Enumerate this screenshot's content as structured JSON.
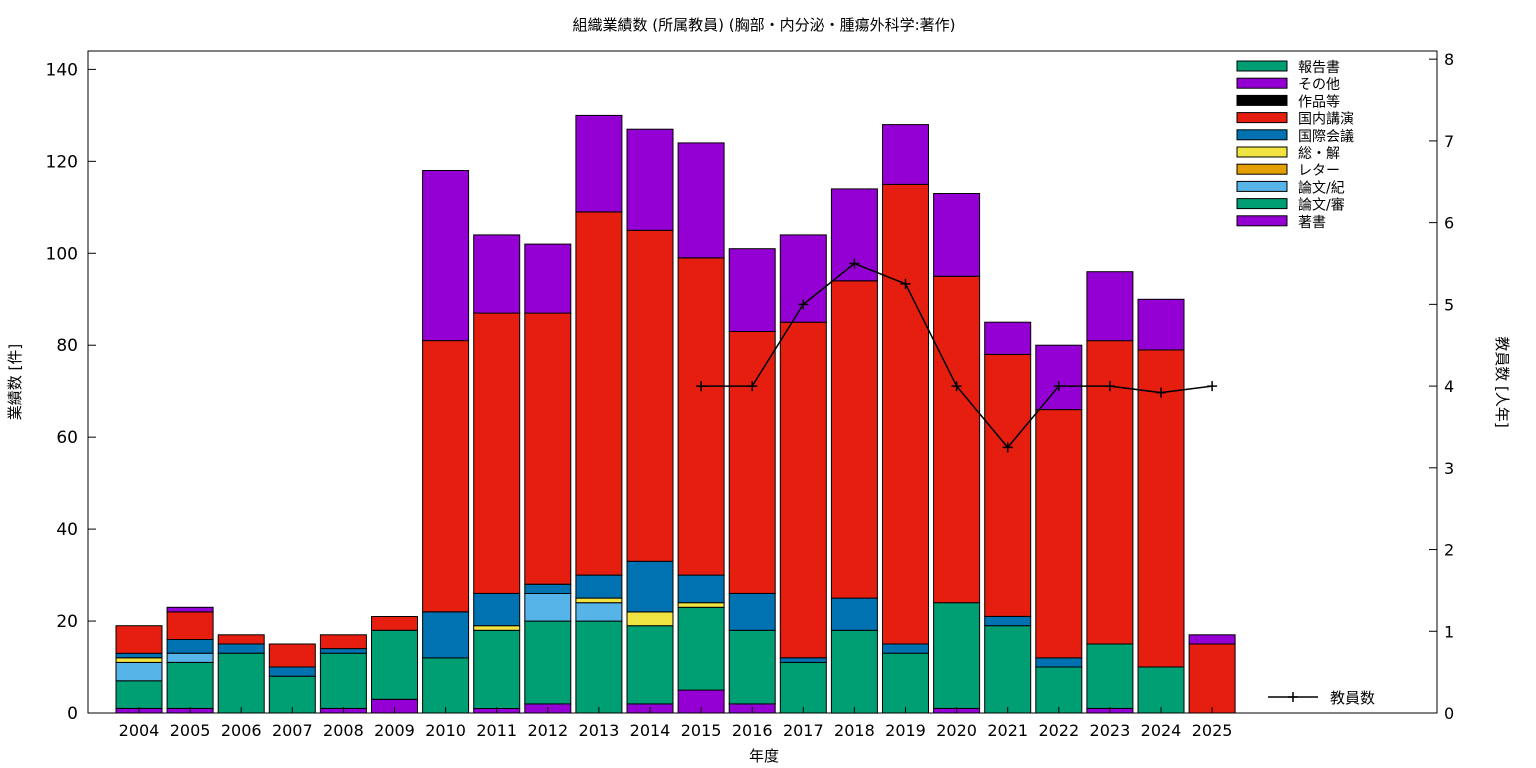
{
  "chart_data": {
    "type": "bar",
    "title": "組織業績数 (所属教員) (胸部・内分泌・腫瘍外科学:著作)",
    "xlabel": "年度",
    "ylabel": "業績数 [件]",
    "y2label": "教員数 [人年]",
    "ylim": [
      0,
      144
    ],
    "y2lim": [
      0,
      8.1
    ],
    "yticks": [
      0,
      20,
      40,
      60,
      80,
      100,
      120,
      140
    ],
    "y2ticks": [
      0,
      1,
      2,
      3,
      4,
      5,
      6,
      7,
      8
    ],
    "grid": false,
    "legend_position": "top-right",
    "categories": [
      "2004",
      "2005",
      "2006",
      "2007",
      "2008",
      "2009",
      "2010",
      "2011",
      "2012",
      "2013",
      "2014",
      "2015",
      "2016",
      "2017",
      "2018",
      "2019",
      "2020",
      "2021",
      "2022",
      "2023",
      "2024",
      "2025"
    ],
    "series": [
      {
        "name": "著書",
        "color": "#9400d3",
        "values": [
          1,
          1,
          0,
          0,
          1,
          3,
          0,
          1,
          2,
          0,
          2,
          5,
          2,
          0,
          0,
          0,
          1,
          0,
          0,
          1,
          0,
          0
        ]
      },
      {
        "name": "論文/審",
        "color": "#009e73",
        "values": [
          6,
          10,
          13,
          8,
          12,
          15,
          12,
          17,
          18,
          20,
          17,
          18,
          16,
          11,
          18,
          13,
          23,
          19,
          10,
          14,
          10,
          0
        ]
      },
      {
        "name": "論文/紀",
        "color": "#56b4e9",
        "values": [
          4,
          2,
          0,
          0,
          0,
          0,
          0,
          0,
          6,
          4,
          0,
          0,
          0,
          0,
          0,
          0,
          0,
          0,
          0,
          0,
          0,
          0
        ]
      },
      {
        "name": "レター",
        "color": "#e69f00",
        "values": [
          0,
          0,
          0,
          0,
          0,
          0,
          0,
          0,
          0,
          0,
          0,
          0,
          0,
          0,
          0,
          0,
          0,
          0,
          0,
          0,
          0,
          0
        ]
      },
      {
        "name": "総・解",
        "color": "#f0e442",
        "values": [
          1,
          0,
          0,
          0,
          0,
          0,
          0,
          1,
          0,
          1,
          3,
          1,
          0,
          0,
          0,
          0,
          0,
          0,
          0,
          0,
          0,
          0
        ]
      },
      {
        "name": "国際会議",
        "color": "#0072b2",
        "values": [
          1,
          3,
          2,
          2,
          1,
          0,
          10,
          7,
          2,
          5,
          11,
          6,
          8,
          1,
          7,
          2,
          0,
          2,
          2,
          0,
          0,
          0
        ]
      },
      {
        "name": "国内講演",
        "color": "#e51e10",
        "values": [
          6,
          6,
          2,
          5,
          3,
          3,
          59,
          61,
          59,
          79,
          72,
          69,
          57,
          73,
          69,
          100,
          71,
          57,
          54,
          66,
          69,
          15
        ]
      },
      {
        "name": "作品等",
        "color": "#000000",
        "values": [
          0,
          0,
          0,
          0,
          0,
          0,
          0,
          0,
          0,
          0,
          0,
          0,
          0,
          0,
          0,
          0,
          0,
          0,
          0,
          0,
          0,
          0
        ]
      },
      {
        "name": "その他",
        "color": "#9400d3",
        "values": [
          0,
          1,
          0,
          0,
          0,
          0,
          37,
          17,
          15,
          21,
          22,
          25,
          18,
          19,
          20,
          13,
          18,
          7,
          14,
          15,
          11,
          2
        ]
      },
      {
        "name": "報告書",
        "color": "#009e73",
        "values": [
          0,
          0,
          0,
          0,
          0,
          0,
          0,
          0,
          0,
          0,
          0,
          0,
          0,
          0,
          0,
          0,
          0,
          0,
          0,
          0,
          0,
          0
        ]
      }
    ],
    "line_series": {
      "name": "教員数",
      "color": "#000000",
      "x": [
        "2015",
        "2016",
        "2017",
        "2018",
        "2019",
        "2020",
        "2021",
        "2022",
        "2023",
        "2024",
        "2025"
      ],
      "values": [
        4.0,
        4.0,
        5.0,
        5.5,
        5.25,
        4.0,
        3.25,
        4.0,
        4.0,
        3.92,
        4.0
      ]
    }
  }
}
